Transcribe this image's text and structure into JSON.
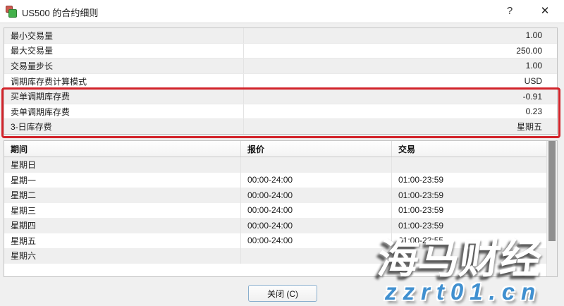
{
  "window": {
    "title": "US500 的合约细则",
    "help_glyph": "?",
    "close_glyph": "✕"
  },
  "spec_table": {
    "rows": [
      {
        "label": "最小交易量",
        "value": "1.00",
        "highlighted": false
      },
      {
        "label": "最大交易量",
        "value": "250.00",
        "highlighted": false
      },
      {
        "label": "交易量步长",
        "value": "1.00",
        "highlighted": false
      },
      {
        "label": "调期库存费计算模式",
        "value": "USD",
        "highlighted": false
      },
      {
        "label": "买单调期库存费",
        "value": "-0.91",
        "highlighted": true
      },
      {
        "label": "卖单调期库存费",
        "value": "0.23",
        "highlighted": true
      },
      {
        "label": "3-日库存费",
        "value": "星期五",
        "highlighted": true
      }
    ]
  },
  "highlight": {
    "color": "#d2232a"
  },
  "sessions_table": {
    "headers": [
      "期间",
      "报价",
      "交易"
    ],
    "rows": [
      {
        "day": "星期日",
        "quotes": "",
        "trading": ""
      },
      {
        "day": "星期一",
        "quotes": "00:00-24:00",
        "trading": "01:00-23:59"
      },
      {
        "day": "星期二",
        "quotes": "00:00-24:00",
        "trading": "01:00-23:59"
      },
      {
        "day": "星期三",
        "quotes": "00:00-24:00",
        "trading": "01:00-23:59"
      },
      {
        "day": "星期四",
        "quotes": "00:00-24:00",
        "trading": "01:00-23:59"
      },
      {
        "day": "星期五",
        "quotes": "00:00-24:00",
        "trading": "01:00-23:55"
      },
      {
        "day": "星期六",
        "quotes": "",
        "trading": ""
      }
    ]
  },
  "footer": {
    "close_button_label": "关闭 (C)"
  },
  "watermark": {
    "line1": "海马财经",
    "line2": "zzrt01.cn",
    "accent_color": "#4090d0"
  }
}
